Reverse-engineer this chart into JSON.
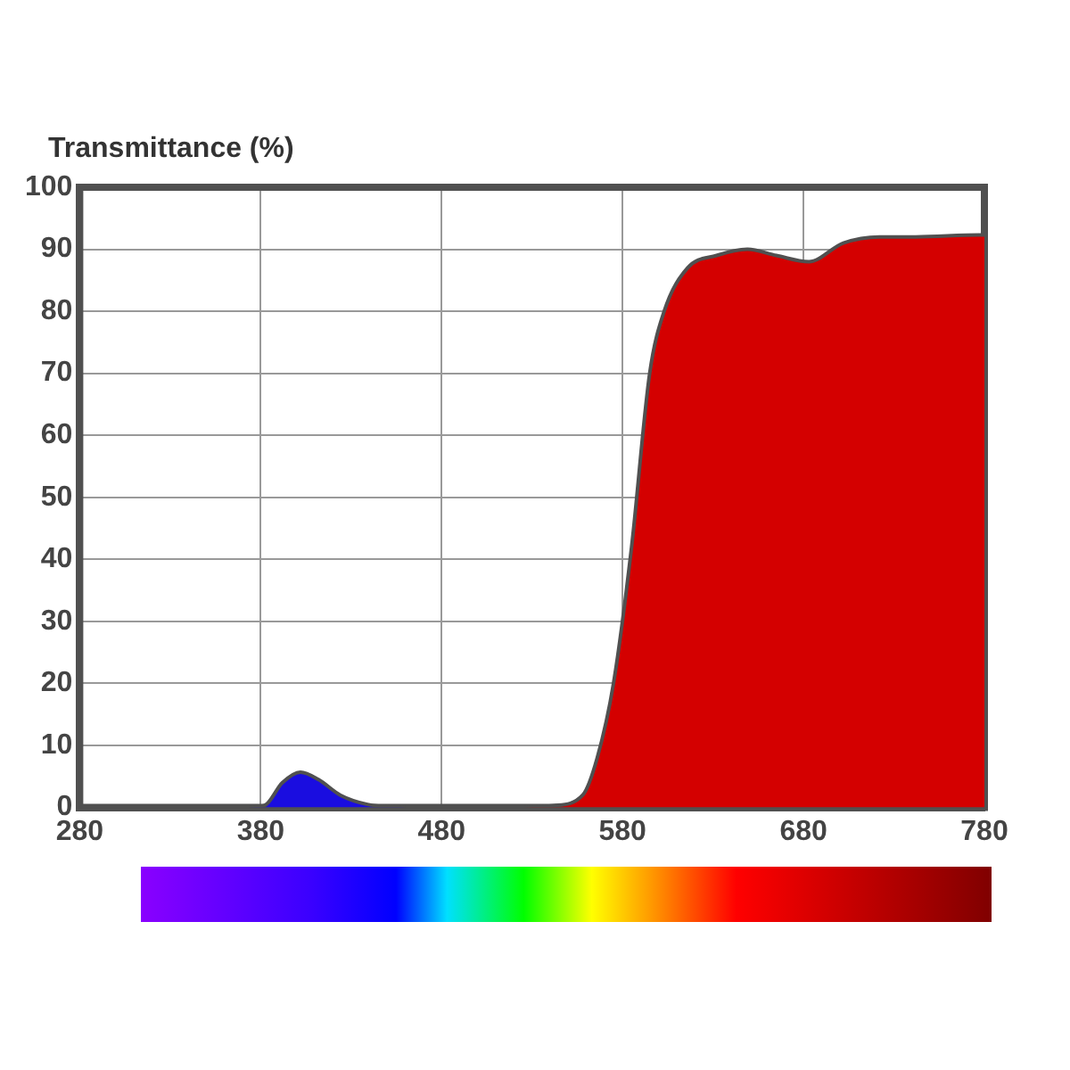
{
  "chart_data": {
    "type": "area",
    "ylabel": "Transmittance (%)",
    "series": [
      {
        "color": "#1a0de0",
        "x": [
          280,
          370,
          382,
          392,
          402,
          412,
          424,
          439,
          460
        ],
        "values": [
          0,
          0,
          0.3,
          4,
          5.7,
          4.5,
          2,
          0.5,
          0
        ]
      },
      {
        "color": "#d40000",
        "x": [
          460,
          520,
          542,
          558,
          566,
          575,
          585,
          595,
          603,
          616,
          632,
          649,
          665,
          683,
          702,
          722,
          742,
          777,
          780
        ],
        "values": [
          0,
          0,
          0.3,
          2,
          8,
          20,
          42,
          70,
          80,
          87,
          89,
          90,
          89,
          88,
          91,
          92,
          92,
          92.3,
          92.3
        ]
      }
    ],
    "xlim": [
      280,
      780
    ],
    "xticks": [
      280,
      380,
      480,
      580,
      680,
      780
    ],
    "ylim": [
      0,
      100
    ],
    "yticks": [
      0,
      10,
      20,
      30,
      40,
      50,
      60,
      70,
      80,
      90,
      100
    ],
    "grid": true,
    "legend": false
  }
}
